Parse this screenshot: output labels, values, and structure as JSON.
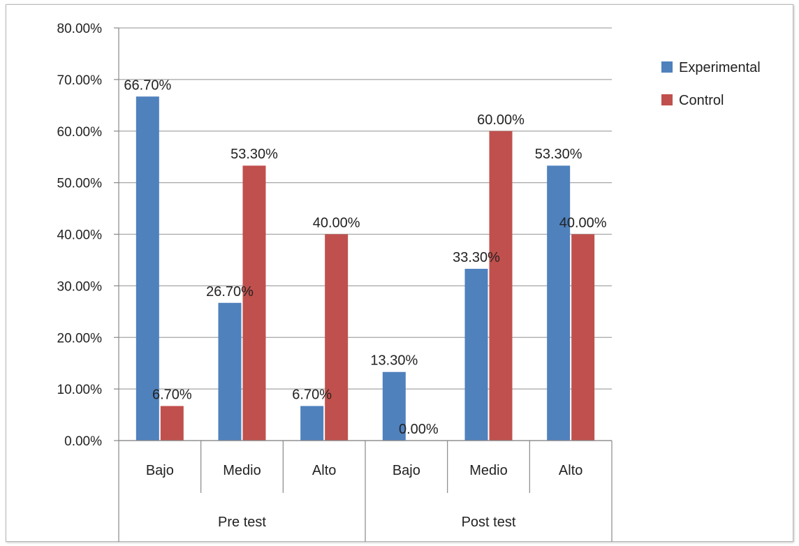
{
  "chart_data": {
    "type": "bar",
    "groups": [
      {
        "label": "Pre test",
        "categories": [
          "Bajo",
          "Medio",
          "Alto"
        ]
      },
      {
        "label": "Post test",
        "categories": [
          "Bajo",
          "Medio",
          "Alto"
        ]
      }
    ],
    "series": [
      {
        "name": "Experimental",
        "color": "#4f81bd",
        "values": [
          66.7,
          26.7,
          6.7,
          13.3,
          33.3,
          53.3
        ],
        "labels": [
          "66.70%",
          "26.70%",
          "6.70%",
          "13.30%",
          "33.30%",
          "53.30%"
        ]
      },
      {
        "name": "Control",
        "color": "#c0504d",
        "values": [
          6.7,
          53.3,
          40.0,
          0.0,
          60.0,
          40.0
        ],
        "labels": [
          "6.70%",
          "53.30%",
          "40.00%",
          "0.00%",
          "60.00%",
          "40.00%"
        ]
      }
    ],
    "ylim": [
      0,
      80
    ],
    "yticks": [
      "0.00%",
      "10.00%",
      "20.00%",
      "30.00%",
      "40.00%",
      "50.00%",
      "60.00%",
      "70.00%",
      "80.00%"
    ],
    "grid": true,
    "legend_position": "right"
  }
}
